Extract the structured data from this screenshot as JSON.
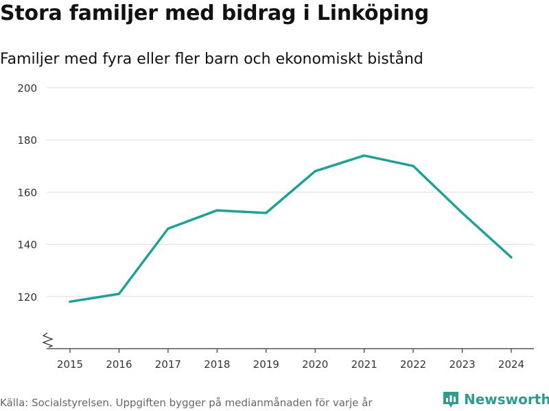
{
  "header": {
    "title": "Stora familjer med bidrag i Linköping",
    "subtitle": "Familjer med fyra eller fler barn och ekonomiskt bistånd"
  },
  "footer": {
    "source": "Källa: Socialstyrelsen. Uppgiften bygger på medianmånaden för varje år",
    "brand": "Newsworthy"
  },
  "colors": {
    "line": "#17a398",
    "grid": "#dddddd",
    "axis": "#333333",
    "brand": "#2e9b8f"
  },
  "chart_data": {
    "type": "line",
    "title": "Stora familjer med bidrag i Linköping",
    "subtitle": "Familjer med fyra eller fler barn och ekonomiskt bistånd",
    "xlabel": "",
    "ylabel": "",
    "x": [
      "2015",
      "2016",
      "2017",
      "2018",
      "2019",
      "2020",
      "2021",
      "2022",
      "2023",
      "2024"
    ],
    "series": [
      {
        "name": "Familjer med fyra eller fler barn och ekonomiskt bistånd",
        "values": [
          118,
          121,
          146,
          153,
          152,
          168,
          174,
          170,
          152,
          135
        ]
      }
    ],
    "yticks": [
      120,
      140,
      160,
      180,
      200
    ],
    "ylim": [
      100,
      200
    ],
    "grid": true,
    "axis_break": true,
    "legend": "none"
  }
}
